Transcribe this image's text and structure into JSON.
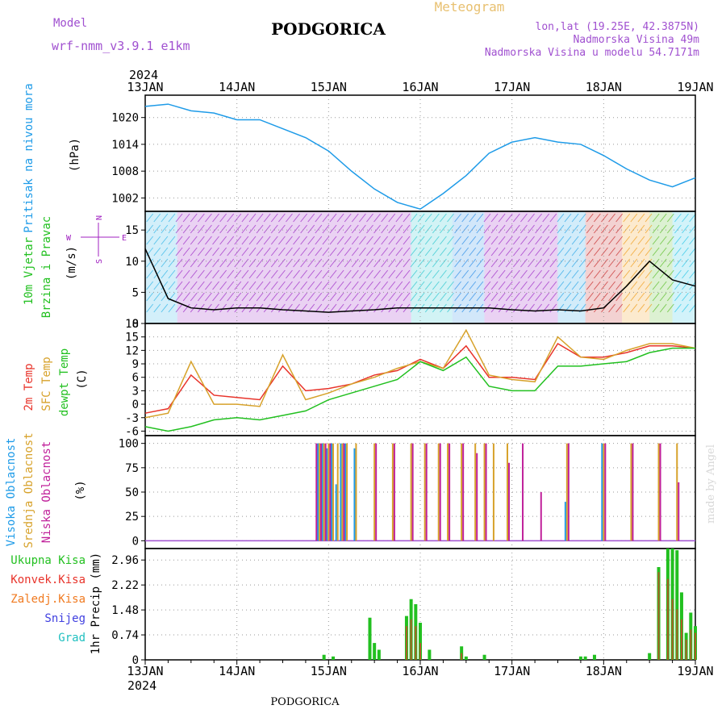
{
  "header": {
    "model_label": "Model",
    "model_name": "wrf-nmm_v3.9.1  e1km",
    "city": "PODGORICA",
    "meteogram": "Meteogram",
    "lonlat": "lon,lat (19.25E, 42.3875N)",
    "elevation": "Nadmorska Visina 49m",
    "model_elevation": "Nadmorska Visina u modelu 54.7171m",
    "footer_city": "PODGORICA",
    "watermark": "made by Angel"
  },
  "time_axis": {
    "year": "2024",
    "labels": [
      "13JAN",
      "14JAN",
      "15JAN",
      "16JAN",
      "17JAN",
      "18JAN",
      "19JAN"
    ]
  },
  "colors": {
    "pressure": "#1e9be8",
    "temp2m": "#e8332a",
    "sfc": "#d7a22b",
    "dewpt": "#22c020",
    "high_cloud": "#1e9be8",
    "mid_cloud": "#d7a22b",
    "low_cloud": "#c0209a",
    "total_precip": "#22c020",
    "conv_precip": "#e8332a",
    "frozen_precip": "#f07a20",
    "snow": "#4040e0",
    "graupel": "#20c0c0",
    "wind_label": "#22c020",
    "compass": "#a020c0"
  },
  "panels": {
    "pressure": {
      "label": "Pritisak na nivou mora",
      "unit": "(hPa)",
      "ticks": [
        "1002",
        "1008",
        "1014",
        "1020"
      ]
    },
    "wind": {
      "label1": "10m Vjetar",
      "label2": "Brzina i Pravac",
      "unit": "(m/s)",
      "ticks": [
        "0",
        "5",
        "10",
        "15"
      ],
      "compass": {
        "n": "N",
        "s": "S",
        "w": "W",
        "e": "E"
      }
    },
    "temp": {
      "label1": "2m Temp",
      "label2": "SFC Temp",
      "label3": "dewpt Temp",
      "unit": "(C)",
      "ticks": [
        "-6",
        "-3",
        "0",
        "3",
        "6",
        "9",
        "12",
        "15",
        "18"
      ]
    },
    "cloud": {
      "label1": "Visoka Oblacnost",
      "label2": "Srednja Oblacnost",
      "label3": "Niska Oblacnost",
      "unit": "(%)",
      "ticks": [
        "0",
        "25",
        "50",
        "75",
        "100"
      ]
    },
    "precip": {
      "legend": [
        "Ukupna Kisa",
        "Konvek.Kisa",
        "Zaledj.Kisa",
        "Snijeg",
        "Grad"
      ],
      "unit": "1hr Precip (mm)",
      "ticks": [
        "0",
        "0.74",
        "1.48",
        "2.22",
        "2.96"
      ]
    }
  },
  "chart_data": [
    {
      "type": "line",
      "title": "Pritisak na nivou mora",
      "ylabel": "(hPa)",
      "ylim": [
        999,
        1025
      ],
      "x_days": [
        0,
        0.25,
        0.5,
        0.75,
        1,
        1.25,
        1.5,
        1.75,
        2,
        2.25,
        2.5,
        2.75,
        3,
        3.25,
        3.5,
        3.75,
        4,
        4.25,
        4.5,
        4.75,
        5,
        5.25,
        5.5,
        5.75,
        6
      ],
      "series": [
        {
          "values": [
            1022.5,
            1023,
            1021.5,
            1021,
            1019.5,
            1019.5,
            1017.5,
            1015.5,
            1012.5,
            1008,
            1004,
            1001,
            999.5,
            1003,
            1007,
            1012,
            1014.5,
            1015.5,
            1014.5,
            1014,
            1011.5,
            1008.5,
            1006,
            1004.5,
            1006.5
          ]
        }
      ]
    },
    {
      "type": "line",
      "title": "10m Vjetar Brzina i Pravac",
      "ylabel": "(m/s)",
      "ylim": [
        0,
        18
      ],
      "x_days": [
        0,
        0.25,
        0.5,
        0.75,
        1,
        1.25,
        1.5,
        1.75,
        2,
        2.25,
        2.5,
        2.75,
        3,
        3.25,
        3.5,
        3.75,
        4,
        4.25,
        4.5,
        4.75,
        5,
        5.25,
        5.5,
        5.75,
        6
      ],
      "series": [
        {
          "values": [
            12,
            4,
            2.5,
            2.2,
            2.5,
            2.5,
            2.2,
            2,
            1.8,
            2,
            2.2,
            2.5,
            2.5,
            2.5,
            2.5,
            2.5,
            2.2,
            2,
            2.2,
            2,
            2.5,
            6,
            10,
            7,
            6
          ]
        }
      ]
    },
    {
      "type": "line",
      "title": "",
      "ylabel": "(C)",
      "ylim": [
        -7,
        18
      ],
      "x_days": [
        0,
        0.25,
        0.5,
        0.75,
        1,
        1.25,
        1.5,
        1.75,
        2,
        2.25,
        2.5,
        2.75,
        3,
        3.25,
        3.5,
        3.75,
        4,
        4.25,
        4.5,
        4.75,
        5,
        5.25,
        5.5,
        5.75,
        6
      ],
      "series": [
        {
          "name": "2m Temp",
          "values": [
            -2,
            -1,
            6.5,
            2,
            1.5,
            1,
            8.5,
            3,
            3.5,
            4.5,
            6.5,
            7.5,
            10,
            8,
            13,
            6,
            6,
            5.5,
            13.5,
            10.5,
            10.5,
            11.5,
            13,
            13,
            12.5
          ]
        },
        {
          "name": "SFC Temp",
          "values": [
            -3,
            -2,
            9.5,
            0,
            0,
            -0.5,
            11,
            1,
            2.5,
            4.5,
            6,
            8,
            9.5,
            8,
            16.5,
            6.5,
            5.5,
            5,
            15,
            10.5,
            10,
            12,
            13.5,
            13.5,
            12.5
          ]
        },
        {
          "name": "dewpt Temp",
          "values": [
            -5,
            -6,
            -5,
            -3.5,
            -3,
            -3.5,
            -2.5,
            -1.5,
            1,
            2.5,
            4,
            5.5,
            9.5,
            7.5,
            10.5,
            4,
            3,
            3,
            8.5,
            8.5,
            9,
            9.5,
            11.5,
            12.5,
            12.5
          ]
        }
      ]
    },
    {
      "type": "bar",
      "title": "",
      "ylabel": "(%)",
      "ylim": [
        0,
        100
      ],
      "x_days": [
        1.85,
        1.9,
        1.95,
        2,
        2.05,
        2.1,
        2.15,
        2.2,
        2.3,
        2.5,
        2.7,
        2.9,
        3.05,
        3.2,
        3.3,
        3.45,
        3.6,
        3.7,
        3.8,
        3.95,
        4.1,
        4.3,
        4.6,
        5.0,
        5.3,
        5.6,
        5.8
      ],
      "series": [
        {
          "name": "Visoka Oblacnost",
          "values": [
            0,
            100,
            100,
            95,
            100,
            58,
            100,
            100,
            95,
            0,
            0,
            0,
            0,
            0,
            0,
            0,
            0,
            0,
            0,
            0,
            0,
            0,
            40,
            100,
            0,
            0,
            0
          ]
        },
        {
          "name": "Srednja Oblacnost",
          "values": [
            0,
            100,
            100,
            100,
            100,
            100,
            100,
            100,
            100,
            100,
            100,
            100,
            100,
            100,
            100,
            100,
            100,
            100,
            100,
            100,
            0,
            0,
            100,
            100,
            100,
            100,
            100
          ]
        },
        {
          "name": "Niska Oblacnost",
          "values": [
            100,
            100,
            100,
            100,
            0,
            0,
            100,
            0,
            0,
            100,
            100,
            100,
            100,
            100,
            100,
            100,
            90,
            100,
            0,
            80,
            100,
            50,
            100,
            100,
            100,
            100,
            60
          ]
        }
      ]
    },
    {
      "type": "bar",
      "title": "",
      "ylabel": "1hr Precip (mm)",
      "ylim": [
        0,
        3.3
      ],
      "x_days": [
        1.95,
        2.05,
        2.45,
        2.5,
        2.55,
        2.85,
        2.9,
        2.95,
        3.0,
        3.1,
        3.45,
        3.5,
        3.7,
        4.75,
        4.8,
        4.9,
        5.5,
        5.6,
        5.7,
        5.75,
        5.8,
        5.85,
        5.9,
        5.95,
        6.0
      ],
      "series": [
        {
          "name": "Ukupna Kisa",
          "values": [
            0.15,
            0.1,
            1.25,
            0.5,
            0.3,
            1.3,
            1.8,
            1.65,
            1.1,
            0.3,
            0.4,
            0.1,
            0.15,
            0.1,
            0.1,
            0.15,
            0.2,
            2.75,
            3.3,
            3.3,
            3.25,
            2.0,
            0.8,
            1.4,
            1.0
          ]
        },
        {
          "name": "Konvek.Kisa",
          "values": [
            0,
            0,
            0,
            0,
            0,
            1.0,
            1.2,
            1.0,
            0.5,
            0,
            0.2,
            0,
            0,
            0,
            0,
            0,
            0,
            2.6,
            2.4,
            1.8,
            1.5,
            1.2,
            0.6,
            0.9,
            0.8
          ]
        }
      ]
    }
  ]
}
